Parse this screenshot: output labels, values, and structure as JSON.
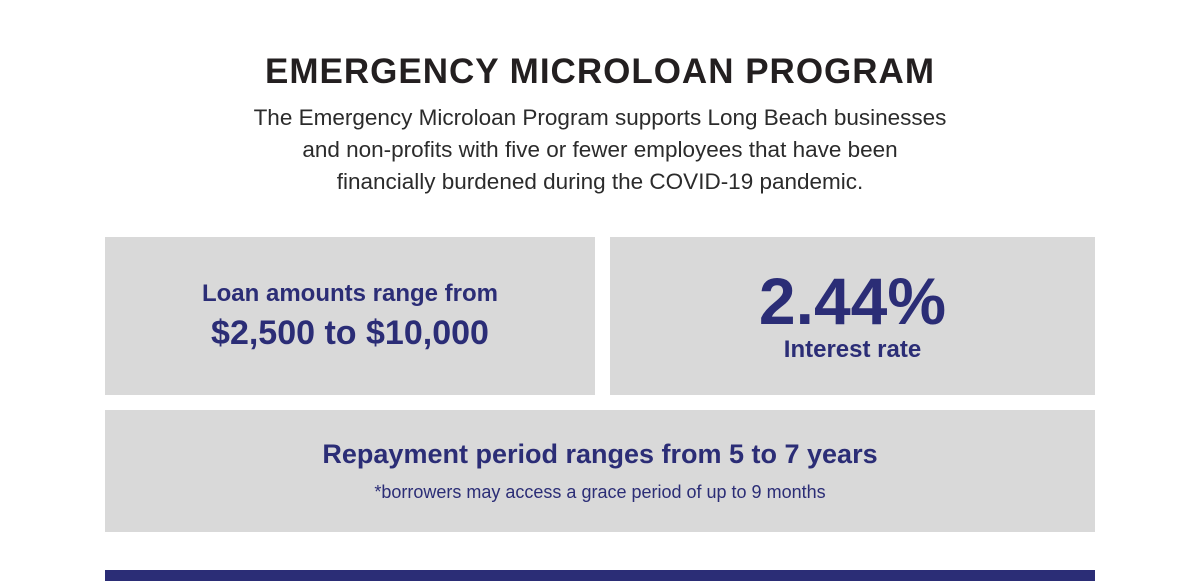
{
  "header": {
    "title": "EMERGENCY MICROLOAN PROGRAM",
    "subtitle_lines": [
      "The Emergency Microloan Program supports Long Beach businesses",
      "and non-profits with five or fewer employees that have been",
      "financially burdened during the COVID-19 pandemic."
    ]
  },
  "cards": {
    "loan": {
      "line1": "Loan amounts range from",
      "line2": "$2,500 to $10,000"
    },
    "interest": {
      "rate": "2.44%",
      "label": "Interest rate"
    },
    "repayment": {
      "heading": "Repayment period ranges from 5 to 7 years",
      "note": "*borrowers may access a grace period of up to 9 months"
    }
  },
  "colors": {
    "navy": "#2b2d76",
    "card_gray": "#d9d9d9",
    "title_black": "#231f20"
  }
}
